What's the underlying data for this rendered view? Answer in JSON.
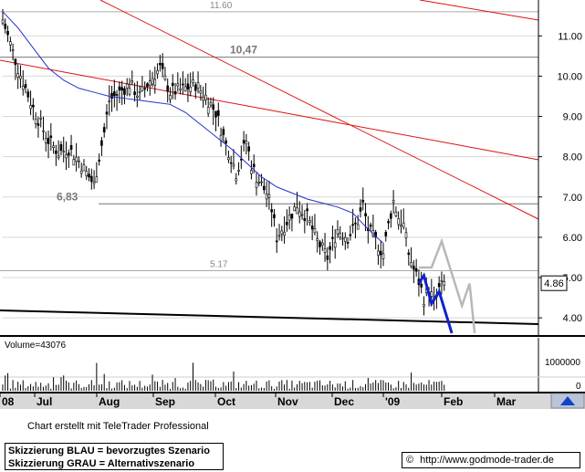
{
  "chart_data": {
    "type": "candlestick",
    "x_ticks": [
      "08",
      "Jul",
      "Aug",
      "Sep",
      "Oct",
      "Nov",
      "Dec",
      "'09",
      "Feb",
      "Mar"
    ],
    "y_ticks": [
      "11.00",
      "10.00",
      "9.00",
      "8.00",
      "7.00",
      "6.00",
      "5.00",
      "4.00"
    ],
    "ylim": [
      3.55,
      11.8
    ],
    "last_price_label": "4.86",
    "annotations": [
      {
        "text": "11.60",
        "value": 11.6,
        "style": "line"
      },
      {
        "text": "10,47",
        "value": 10.47,
        "style": "line-bold"
      },
      {
        "text": "6,83",
        "value": 6.83,
        "style": "line-bold"
      },
      {
        "text": "5.17",
        "value": 5.17,
        "style": "line"
      }
    ],
    "moving_average": [
      [
        0,
        11.6
      ],
      [
        6,
        11.2
      ],
      [
        12,
        10.7
      ],
      [
        18,
        10.2
      ],
      [
        24,
        9.9
      ],
      [
        30,
        9.7
      ],
      [
        36,
        9.6
      ],
      [
        42,
        9.5
      ],
      [
        48,
        9.45
      ],
      [
        54,
        9.4
      ],
      [
        60,
        9.35
      ],
      [
        66,
        9.3
      ],
      [
        72,
        9.1
      ],
      [
        78,
        8.8
      ],
      [
        84,
        8.5
      ],
      [
        90,
        8.2
      ],
      [
        96,
        7.85
      ],
      [
        102,
        7.5
      ],
      [
        108,
        7.25
      ],
      [
        114,
        7.1
      ],
      [
        120,
        6.95
      ],
      [
        126,
        6.85
      ],
      [
        132,
        6.75
      ],
      [
        138,
        6.6
      ],
      [
        144,
        6.2
      ],
      [
        150,
        5.85
      ]
    ],
    "scenario_blue": [
      [
        164,
        4.86
      ],
      [
        166,
        5.05
      ],
      [
        169,
        4.35
      ],
      [
        172,
        4.65
      ],
      [
        177,
        3.62
      ]
    ],
    "scenario_grey": [
      [
        164,
        5.25
      ],
      [
        169,
        5.25
      ],
      [
        173,
        5.9
      ],
      [
        181,
        4.3
      ],
      [
        184,
        4.85
      ],
      [
        186,
        3.62
      ]
    ],
    "volume_label": "Volume=43076",
    "volume_ticks": [
      "1000000",
      "0"
    ]
  },
  "footer": {
    "credit": "Chart erstellt mit TeleTrader Professional",
    "legend_blue": "Skizzierung BLAU = bevorzugtes Szenario",
    "legend_grey": "Skizzierung GRAU = Alternativszenario",
    "copyright_symbol": "©",
    "url": "http://www.godmode-trader.de"
  }
}
